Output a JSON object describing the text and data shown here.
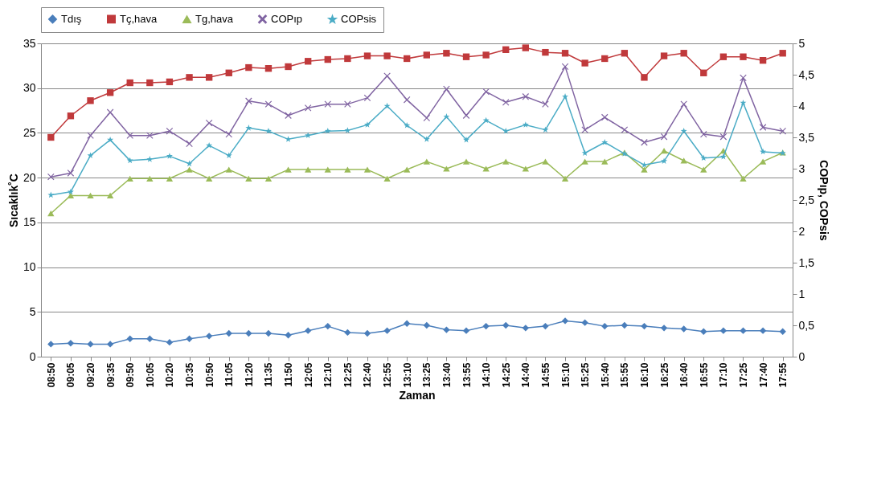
{
  "chart_data": {
    "type": "line",
    "xlabel": "Zaman",
    "ylabel": "Sıcaklık˚C",
    "y2label": "COPıp, COPsis",
    "categories": [
      "08:50",
      "09:05",
      "09:20",
      "09:35",
      "09:50",
      "10:05",
      "10:20",
      "10:35",
      "10:50",
      "11:05",
      "11:20",
      "11:35",
      "11:50",
      "12:05",
      "12:10",
      "12:25",
      "12:40",
      "12:55",
      "13:10",
      "13:25",
      "13:40",
      "13:55",
      "14:10",
      "14:25",
      "14:40",
      "14:55",
      "15:10",
      "15:25",
      "15:40",
      "15:55",
      "16:10",
      "16:25",
      "16:40",
      "16:55",
      "17:10",
      "17:25",
      "17:40",
      "17:55"
    ],
    "series": [
      {
        "name": "Tdış",
        "color": "#4a7ebb",
        "marker": "diamond",
        "values": [
          1.4,
          1.5,
          1.4,
          1.4,
          2.0,
          2.0,
          1.6,
          2.0,
          2.3,
          2.6,
          2.6,
          2.6,
          2.4,
          2.9,
          3.4,
          2.7,
          2.6,
          2.9,
          3.7,
          3.5,
          3.0,
          2.9,
          3.4,
          3.5,
          3.2,
          3.4,
          4.0,
          3.8,
          3.4,
          3.5,
          3.4,
          3.2,
          3.1,
          2.8,
          2.9,
          2.9,
          2.9,
          2.8
        ]
      },
      {
        "name": "Tç,hava",
        "color": "#c0393b",
        "marker": "square",
        "values": [
          24.5,
          26.9,
          28.6,
          29.5,
          30.6,
          30.6,
          30.7,
          31.2,
          31.2,
          31.7,
          32.3,
          32.2,
          32.4,
          33.0,
          33.2,
          33.3,
          33.6,
          33.6,
          33.3,
          33.7,
          33.9,
          33.5,
          33.7,
          34.3,
          34.5,
          34.0,
          33.9,
          32.8,
          33.3,
          33.9,
          31.2,
          33.6,
          33.9,
          31.7,
          33.5,
          33.5,
          33.1,
          33.9
        ]
      },
      {
        "name": "Tg,hava",
        "color": "#9bbb59",
        "marker": "triangle",
        "values": [
          16.0,
          18.0,
          18.0,
          18.0,
          19.9,
          19.9,
          19.9,
          20.9,
          19.9,
          20.9,
          19.9,
          19.9,
          20.9,
          20.9,
          20.9,
          20.9,
          20.9,
          19.9,
          20.9,
          21.8,
          21.0,
          21.8,
          21.0,
          21.8,
          21.0,
          21.8,
          19.9,
          21.8,
          21.8,
          22.8,
          20.9,
          23.0,
          21.9,
          20.9,
          23.0,
          19.9,
          21.8,
          22.8
        ]
      },
      {
        "name": "COPıp",
        "color": "#8064a2",
        "marker": "cross",
        "axis": "y2",
        "values": [
          2.87,
          2.93,
          3.53,
          3.9,
          3.53,
          3.53,
          3.6,
          3.4,
          3.73,
          3.55,
          4.08,
          4.03,
          3.85,
          3.97,
          4.03,
          4.03,
          4.13,
          4.48,
          4.1,
          3.81,
          4.27,
          3.85,
          4.23,
          4.06,
          4.15,
          4.03,
          4.63,
          3.62,
          3.82,
          3.62,
          3.42,
          3.51,
          4.03,
          3.55,
          3.51,
          4.45,
          3.66,
          3.6
        ]
      },
      {
        "name": "COPsis",
        "color": "#4bacc6",
        "marker": "star",
        "axis": "y2",
        "values": [
          2.58,
          2.63,
          3.21,
          3.46,
          3.13,
          3.15,
          3.2,
          3.08,
          3.37,
          3.21,
          3.65,
          3.6,
          3.47,
          3.53,
          3.6,
          3.61,
          3.7,
          4.0,
          3.69,
          3.47,
          3.83,
          3.46,
          3.77,
          3.6,
          3.7,
          3.62,
          4.15,
          3.25,
          3.42,
          3.24,
          3.06,
          3.12,
          3.6,
          3.17,
          3.19,
          4.05,
          3.27,
          3.25
        ]
      }
    ],
    "ylim": [
      0,
      35
    ],
    "yticks": [
      0,
      5,
      10,
      15,
      20,
      25,
      30,
      35
    ],
    "y2lim": [
      0,
      5
    ],
    "y2ticks": [
      0,
      {
        "value": 0.5,
        "label": "0,5"
      },
      1,
      {
        "value": 1.5,
        "label": "1,5"
      },
      2,
      {
        "value": 2.5,
        "label": "2,5"
      },
      3,
      {
        "value": 3.5,
        "label": "3,5"
      },
      4,
      {
        "value": 4.5,
        "label": "4,5"
      },
      5
    ],
    "grid": "y",
    "legend": "top"
  }
}
